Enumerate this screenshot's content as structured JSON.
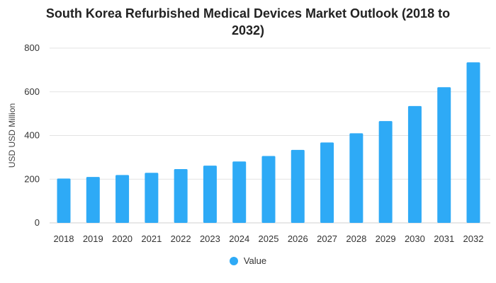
{
  "chart_data": {
    "type": "bar",
    "title": "South Korea Refurbished Medical Devices Market Outlook (2018 to 2032)",
    "title_lines": [
      "South Korea Refurbished Medical Devices Market Outlook (2018 to",
      "2032)"
    ],
    "xlabel": "",
    "ylabel": "USD USD Million",
    "categories": [
      "2018",
      "2019",
      "2020",
      "2021",
      "2022",
      "2023",
      "2024",
      "2025",
      "2026",
      "2027",
      "2028",
      "2029",
      "2030",
      "2031",
      "2032"
    ],
    "series": [
      {
        "name": "Value",
        "color": "#2eaaf6",
        "values": [
          203,
          210,
          219,
          229,
          246,
          262,
          281,
          306,
          334,
          368,
          410,
          466,
          535,
          621,
          735
        ]
      }
    ],
    "ylim": [
      0,
      800
    ],
    "yticks": [
      0,
      200,
      400,
      600,
      800
    ],
    "grid": true,
    "legend_position": "bottom-center"
  }
}
